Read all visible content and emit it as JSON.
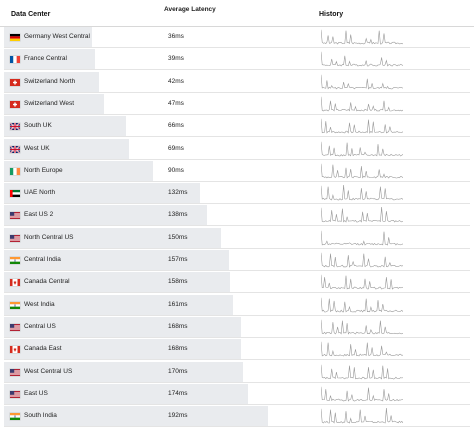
{
  "columns": {
    "datacenter": "Data Center",
    "latency": "Average Latency",
    "history": "History"
  },
  "rows": [
    {
      "name": "Germany West Central",
      "latency": "36ms",
      "latency_value": 36,
      "flag": "germany-flag",
      "spikes": [
        0.6,
        0.9,
        0.4,
        0.9
      ]
    },
    {
      "name": "France Central",
      "latency": "39ms",
      "latency_value": 39,
      "flag": "france-flag",
      "spikes": [
        0.5,
        0.7,
        0.4,
        0.6
      ]
    },
    {
      "name": "Switzerland North",
      "latency": "42ms",
      "latency_value": 42,
      "flag": "switzerland-flag",
      "spikes": [
        0.6,
        0.5,
        0.7,
        0.4
      ]
    },
    {
      "name": "Switzerland West",
      "latency": "47ms",
      "latency_value": 47,
      "flag": "switzerland-flag",
      "spikes": [
        0.7,
        0.6,
        0.5,
        0.7
      ]
    },
    {
      "name": "South UK",
      "latency": "66ms",
      "latency_value": 66,
      "flag": "uk-flag",
      "spikes": [
        0.8,
        0.7,
        0.9,
        0.6
      ]
    },
    {
      "name": "West UK",
      "latency": "69ms",
      "latency_value": 69,
      "flag": "uk-flag",
      "spikes": [
        0.7,
        0.9,
        0.6,
        0.8
      ]
    },
    {
      "name": "North Europe",
      "latency": "90ms",
      "latency_value": 90,
      "flag": "ireland-flag",
      "spikes": [
        0.9,
        0.7,
        0.8,
        0.6
      ]
    },
    {
      "name": "UAE North",
      "latency": "132ms",
      "latency_value": 132,
      "flag": "uae-flag",
      "spikes": [
        0.9,
        1.0,
        0.8,
        0.9
      ]
    },
    {
      "name": "East US 2",
      "latency": "138ms",
      "latency_value": 138,
      "flag": "us-flag",
      "spikes": [
        0.8,
        0.9,
        0.7,
        1.0
      ]
    },
    {
      "name": "North Central US",
      "latency": "150ms",
      "latency_value": 150,
      "flag": "us-flag",
      "spikes": [
        0.3,
        0.2,
        0.3,
        0.9
      ]
    },
    {
      "name": "Central India",
      "latency": "157ms",
      "latency_value": 157,
      "flag": "india-flag",
      "spikes": [
        0.9,
        0.8,
        0.9,
        0.7
      ]
    },
    {
      "name": "Canada Central",
      "latency": "158ms",
      "latency_value": 158,
      "flag": "canada-flag",
      "spikes": [
        0.8,
        0.9,
        0.7,
        0.8
      ]
    },
    {
      "name": "West India",
      "latency": "161ms",
      "latency_value": 161,
      "flag": "india-flag",
      "spikes": [
        0.9,
        0.7,
        0.9,
        0.8
      ]
    },
    {
      "name": "Central US",
      "latency": "168ms",
      "latency_value": 168,
      "flag": "us-flag",
      "spikes": [
        0.8,
        0.9,
        0.6,
        0.9
      ]
    },
    {
      "name": "Canada East",
      "latency": "168ms",
      "latency_value": 168,
      "flag": "canada-flag",
      "spikes": [
        0.9,
        0.8,
        0.9,
        0.7
      ]
    },
    {
      "name": "West Central US",
      "latency": "170ms",
      "latency_value": 170,
      "flag": "us-flag",
      "spikes": [
        0.7,
        0.9,
        0.8,
        0.9
      ]
    },
    {
      "name": "East US",
      "latency": "174ms",
      "latency_value": 174,
      "flag": "us-flag",
      "spikes": [
        0.8,
        0.7,
        0.9,
        0.8
      ]
    },
    {
      "name": "South India",
      "latency": "192ms",
      "latency_value": 192,
      "flag": "india-flag",
      "spikes": [
        0.9,
        0.8,
        0.9,
        1.0
      ]
    }
  ],
  "colors": {
    "bar": "#e9ebee",
    "sparkline": "#9a9a9a",
    "border": "#e4e4e4"
  }
}
